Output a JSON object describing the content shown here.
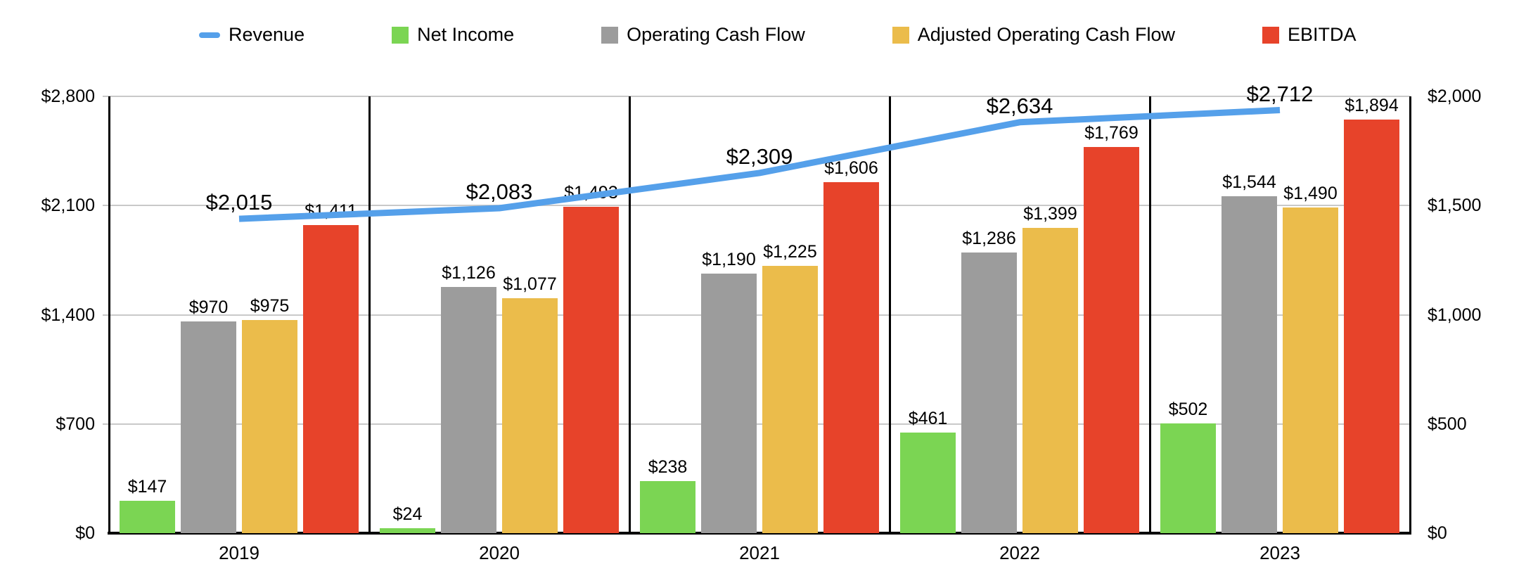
{
  "legend": {
    "items": [
      {
        "label": "Revenue",
        "color": "#55A0EA",
        "marker": "line"
      },
      {
        "label": "Net Income",
        "color": "#7BD553",
        "marker": "square"
      },
      {
        "label": "Operating Cash Flow",
        "color": "#9C9C9C",
        "marker": "square"
      },
      {
        "label": "Adjusted Operating Cash Flow",
        "color": "#EBBC4B",
        "marker": "square"
      },
      {
        "label": "EBITDA",
        "color": "#E7432A",
        "marker": "square"
      }
    ]
  },
  "chart_data": {
    "type": "bar",
    "subtype": "grouped-bars-with-line-overlay",
    "title": "",
    "categories": [
      "2019",
      "2020",
      "2021",
      "2022",
      "2023"
    ],
    "series": [
      {
        "name": "Revenue",
        "chart": "line",
        "axis": "left",
        "color": "#55A0EA",
        "values": [
          2015,
          2083,
          2309,
          2634,
          2712
        ],
        "labels": [
          "$2,015",
          "$2,083",
          "$2,309",
          "$2,634",
          "$2,712"
        ]
      },
      {
        "name": "Net Income",
        "chart": "bar",
        "axis": "right",
        "color": "#7BD553",
        "values": [
          147,
          24,
          238,
          461,
          502
        ],
        "labels": [
          "$147",
          "$24",
          "$238",
          "$461",
          "$502"
        ]
      },
      {
        "name": "Operating Cash Flow",
        "chart": "bar",
        "axis": "right",
        "color": "#9C9C9C",
        "values": [
          970,
          1126,
          1190,
          1286,
          1544
        ],
        "labels": [
          "$970",
          "$1,126",
          "$1,190",
          "$1,286",
          "$1,544"
        ]
      },
      {
        "name": "Adjusted Operating Cash Flow",
        "chart": "bar",
        "axis": "right",
        "color": "#EBBC4B",
        "values": [
          975,
          1077,
          1225,
          1399,
          1490
        ],
        "labels": [
          "$975",
          "$1,077",
          "$1,225",
          "$1,399",
          "$1,490"
        ]
      },
      {
        "name": "EBITDA",
        "chart": "bar",
        "axis": "right",
        "color": "#E7432A",
        "values": [
          1411,
          1493,
          1606,
          1769,
          1894
        ],
        "labels": [
          "$1,411",
          "$1,493",
          "$1,606",
          "$1,769",
          "$1,894"
        ]
      }
    ],
    "axis_left": {
      "min": 0,
      "max": 2800,
      "ticks": [
        {
          "label": "$2,800",
          "value": 2800
        },
        {
          "label": "$2,100",
          "value": 2100
        },
        {
          "label": "$1,400",
          "value": 1400
        },
        {
          "label": "$700",
          "value": 700
        },
        {
          "label": "$0",
          "value": 0
        }
      ]
    },
    "axis_right": {
      "min": 0,
      "max": 2000,
      "ticks": [
        {
          "label": "$2,000",
          "value": 2000
        },
        {
          "label": "$1,500",
          "value": 1500
        },
        {
          "label": "$1,000",
          "value": 1000
        },
        {
          "label": "$500",
          "value": 500
        },
        {
          "label": "$0",
          "value": 0
        }
      ]
    },
    "grid": true,
    "group_dividers": true,
    "legend_position": "top",
    "colors": {
      "grid": "#C9C9C9",
      "axis": "#000000",
      "text": "#000000",
      "background": "#FFFFFF"
    }
  }
}
